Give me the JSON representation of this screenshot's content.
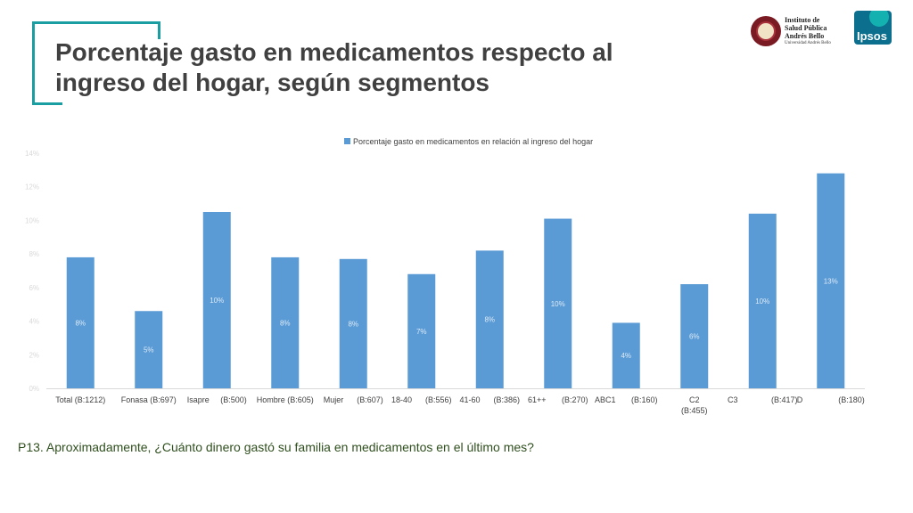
{
  "header": {
    "title": "Porcentaje gasto en medicamentos respecto al ingreso del hogar, según segmentos",
    "isp_logo": {
      "line1": "Instituto de",
      "line2": "Salud Pública",
      "line3": "Andrés Bello",
      "line4": "Universidad Andrés Bello"
    },
    "ipsos_logo": "Ipsos"
  },
  "footer": {
    "question": "P13. Aproximadamente, ¿Cuánto dinero gastó su familia en medicamentos en el último mes?"
  },
  "colors": {
    "accent": "#1a9ea2",
    "bar": "#5b9bd5"
  },
  "chart_data": {
    "type": "bar",
    "legend": "Porcentaje gasto en medicamentos en relación al ingreso del hogar",
    "legend_position": "top",
    "categories": [
      [
        "Total (B:1212)"
      ],
      [
        "Fonasa (B:697)"
      ],
      [
        "Isapre     (B:500)"
      ],
      [
        "Hombre (B:605)"
      ],
      [
        "Mujer      (B:607)"
      ],
      [
        "18-40      (B:556)"
      ],
      [
        "41-60      (B:386)"
      ],
      [
        "61++       (B:270)"
      ],
      [
        "ABC1       (B:160)"
      ],
      [
        "C2",
        "(B:455)"
      ],
      [
        "C3               (B:417)"
      ],
      [
        "D                (B:180)"
      ]
    ],
    "values": [
      7.8,
      4.6,
      10.5,
      7.8,
      7.7,
      6.8,
      8.2,
      10.1,
      3.9,
      6.2,
      10.4,
      12.8
    ],
    "data_labels": [
      "8%",
      "5%",
      "10%",
      "8%",
      "8%",
      "7%",
      "8%",
      "10%",
      "4%",
      "6%",
      "10%",
      "13%"
    ],
    "ylim": [
      0,
      14
    ],
    "yticks": [
      "0%",
      "2%",
      "4%",
      "6%",
      "8%",
      "10%",
      "12%",
      "14%"
    ],
    "grid": false,
    "xlabel": "",
    "ylabel": ""
  }
}
